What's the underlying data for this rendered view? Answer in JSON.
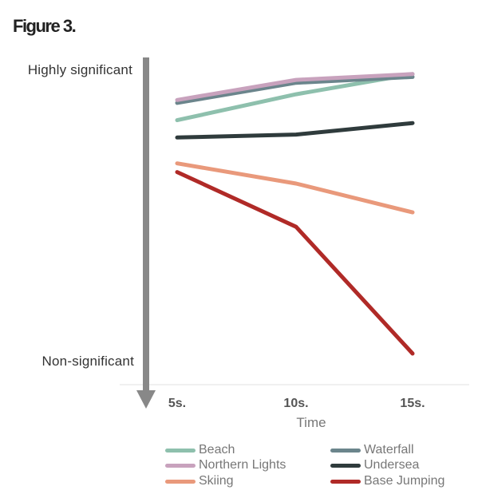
{
  "figure_title": "Figure 3.",
  "colors": {
    "Beach": "#8ec0ad",
    "Waterfall": "#6b858c",
    "Northern Lights": "#c8a2bd",
    "Undersea": "#2f3b3c",
    "Skiing": "#e9997b",
    "Base Jumping": "#b02a27",
    "axis_arrow": "#888888"
  },
  "chart_data": {
    "type": "line",
    "title": "",
    "xlabel": "Time",
    "ylabel": "",
    "categories": [
      "5s.",
      "10s.",
      "15s."
    ],
    "y_annotations": {
      "top": "Highly significant",
      "bottom": "Non-significant"
    },
    "ylim": [
      0,
      100
    ],
    "y_direction": "down",
    "series": [
      {
        "name": "Beach",
        "values": [
          81,
          90,
          97
        ]
      },
      {
        "name": "Waterfall",
        "values": [
          87,
          94,
          96
        ]
      },
      {
        "name": "Northern Lights",
        "values": [
          88,
          95,
          97
        ]
      },
      {
        "name": "Undersea",
        "values": [
          75,
          76,
          80
        ]
      },
      {
        "name": "Skiing",
        "values": [
          66,
          59,
          49
        ]
      },
      {
        "name": "Base Jumping",
        "values": [
          63,
          44,
          0
        ]
      }
    ],
    "legend": {
      "placement": "bottom",
      "items": [
        "Beach",
        "Waterfall",
        "Northern Lights",
        "Undersea",
        "Skiing",
        "Base Jumping"
      ]
    }
  }
}
